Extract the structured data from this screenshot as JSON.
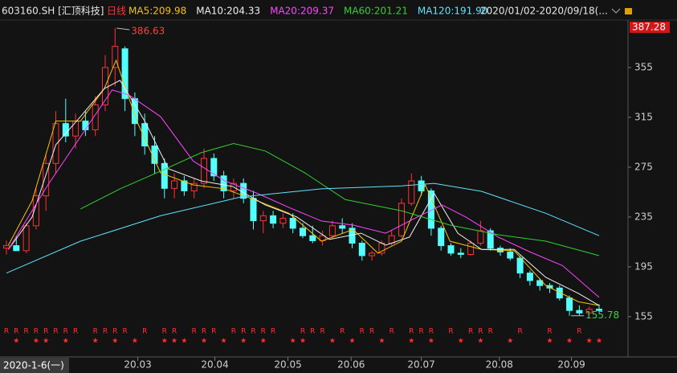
{
  "chart_data": {
    "type": "candlestick",
    "stock": "603160.SH [汇顶科技]",
    "period": "日线",
    "date_range": "2020/01/02-2020/09/18(...",
    "cursor_label": "2020-1-6(一)",
    "up_color": "#ff3232",
    "down_color": "#54ffff",
    "open": [
      210,
      212,
      208,
      228,
      252,
      278,
      310,
      300,
      312,
      305,
      325,
      355,
      370,
      330,
      310,
      292,
      278,
      258,
      264,
      256,
      262,
      282,
      268,
      256,
      262,
      250,
      232,
      236,
      230,
      234,
      226,
      220,
      216,
      220,
      228,
      226,
      214,
      204,
      206,
      214,
      220,
      246,
      264,
      256,
      226,
      212,
      206,
      205,
      214,
      224,
      210,
      207,
      202,
      190,
      184,
      180,
      178,
      170,
      160,
      158,
      161
    ],
    "high": [
      216,
      220,
      230,
      258,
      285,
      320,
      330,
      318,
      320,
      332,
      365,
      386.63,
      372,
      335,
      318,
      300,
      282,
      270,
      268,
      266,
      290,
      286,
      272,
      266,
      266,
      256,
      240,
      240,
      238,
      238,
      230,
      228,
      224,
      232,
      234,
      230,
      216,
      208,
      216,
      224,
      250,
      270,
      268,
      258,
      228,
      214,
      210,
      216,
      232,
      226,
      212,
      210,
      204,
      192,
      186,
      182,
      180,
      172,
      164,
      163,
      165
    ],
    "low": [
      205,
      208,
      206,
      225,
      240,
      270,
      295,
      290,
      300,
      300,
      320,
      340,
      320,
      300,
      285,
      270,
      250,
      250,
      252,
      250,
      258,
      264,
      250,
      250,
      246,
      225,
      222,
      226,
      226,
      222,
      218,
      214,
      212,
      218,
      222,
      210,
      200,
      200,
      204,
      212,
      218,
      244,
      252,
      220,
      208,
      204,
      202,
      204,
      212,
      208,
      204,
      200,
      186,
      180,
      176,
      174,
      168,
      155.78,
      156,
      156,
      158
    ],
    "close": [
      212,
      208,
      228,
      252,
      278,
      310,
      300,
      312,
      305,
      325,
      355,
      372,
      330,
      310,
      292,
      278,
      258,
      264,
      256,
      262,
      282,
      268,
      256,
      262,
      250,
      232,
      236,
      230,
      234,
      226,
      220,
      216,
      220,
      228,
      226,
      214,
      204,
      206,
      214,
      220,
      246,
      264,
      256,
      226,
      212,
      206,
      205,
      214,
      224,
      210,
      207,
      202,
      190,
      184,
      180,
      178,
      170,
      160,
      158,
      161,
      160
    ],
    "series": [
      {
        "name": "MA5:209.98",
        "color": "#f5c400",
        "x": [
          0.2,
          2.6,
          5.0,
          7.5,
          9.9,
          11.1,
          13.2,
          15.6,
          18.9,
          22.1,
          25.4,
          28.6,
          31.9,
          35.1,
          37.6,
          40.0,
          42.4,
          44.9,
          48.1,
          51.4,
          54.6,
          57.9,
          60
        ],
        "values": [
          212.4,
          248,
          312,
          312,
          338,
          360.8,
          312,
          270.5,
          260.8,
          257.6,
          248,
          238,
          215.6,
          225,
          206,
          215.6,
          260.8,
          215.6,
          209,
          208,
          180,
          167,
          164
        ]
      },
      {
        "name": "MA10:204.33",
        "color": "#f0f0f0",
        "x": [
          0.2,
          2.6,
          5.0,
          7.5,
          9.9,
          11.5,
          14.0,
          16.4,
          19.7,
          22.9,
          26.2,
          29.4,
          32.7,
          35.9,
          38.4,
          40.8,
          43.3,
          45.7,
          48.1,
          51.4,
          54.6,
          57.9,
          60
        ],
        "values": [
          209,
          235,
          293,
          315.6,
          338,
          344.7,
          312,
          273.7,
          264,
          259.5,
          244.7,
          235,
          217,
          222,
          212.4,
          218.9,
          254,
          222,
          209,
          209,
          186.6,
          173.7,
          164
        ]
      },
      {
        "name": "MA20:209.37",
        "color": "#ff44ff",
        "x": [
          0.2,
          4.2,
          7.5,
          10.7,
          12.4,
          15.6,
          18.9,
          22.1,
          25.4,
          28.6,
          31.9,
          35.1,
          38.4,
          41.6,
          44.1,
          46.5,
          49.8,
          53.0,
          56.3,
          60
        ],
        "values": [
          209,
          260.8,
          299.5,
          337,
          333,
          315.6,
          280,
          264,
          254,
          242.7,
          231.8,
          228.5,
          222,
          235,
          244.7,
          235,
          218.9,
          207,
          196,
          170.5
        ]
      },
      {
        "name": "MA60:201.21",
        "color": "#2fd12f",
        "x": [
          7.5,
          11.5,
          15.6,
          19.7,
          23,
          26.2,
          30.2,
          34.3,
          40.0,
          44.9,
          49.8,
          54.6,
          60
        ],
        "values": [
          241.5,
          257.6,
          271.8,
          286.6,
          294,
          288,
          270.5,
          249,
          240,
          228.5,
          220.8,
          215.6,
          204
        ]
      },
      {
        "name": "MA120:191.90",
        "color": "#5fe3ff",
        "x": [
          0,
          7.5,
          15.6,
          23.7,
          31.9,
          40.0,
          43.3,
          48.1,
          54.6,
          60
        ],
        "values": [
          190,
          215.6,
          236,
          251,
          257.6,
          260,
          262,
          255.6,
          238,
          220
        ]
      }
    ],
    "xlim": [
      0,
      60
    ],
    "xticks": [
      {
        "value": 13.3,
        "label": "20.03"
      },
      {
        "value": 21.1,
        "label": "20.04"
      },
      {
        "value": 28.5,
        "label": "20.05"
      },
      {
        "value": 34.9,
        "label": "20.06"
      },
      {
        "value": 42,
        "label": "20.07"
      },
      {
        "value": 49.9,
        "label": "20.08"
      },
      {
        "value": 57.2,
        "label": "20.09"
      }
    ],
    "ylim": [
      151.1,
      392.4
    ],
    "yticks": [
      155,
      195,
      235,
      275,
      315,
      355
    ],
    "axis_top_label": 387.28,
    "annotations": [
      {
        "index": 11,
        "value": 386.63,
        "color": "#ff4040"
      },
      {
        "index": 57,
        "value": 155.78,
        "color": "#40d040"
      }
    ],
    "markers": {
      "r": "R",
      "star": "★",
      "r_at": [
        0,
        1,
        2,
        3,
        4,
        5,
        6,
        7,
        9,
        10,
        11,
        12,
        14,
        16,
        17,
        19,
        20,
        21,
        23,
        24,
        25,
        26,
        27,
        30,
        31,
        32,
        34,
        36,
        37,
        39,
        41,
        42,
        43,
        45,
        47,
        48,
        49,
        52,
        55,
        58
      ],
      "star_at": [
        1,
        3,
        4,
        6,
        9,
        11,
        13,
        16,
        17,
        18,
        20,
        22,
        24,
        26,
        29,
        30,
        33,
        35,
        38,
        41,
        43,
        46,
        48,
        51,
        55,
        57,
        59,
        60
      ]
    }
  }
}
